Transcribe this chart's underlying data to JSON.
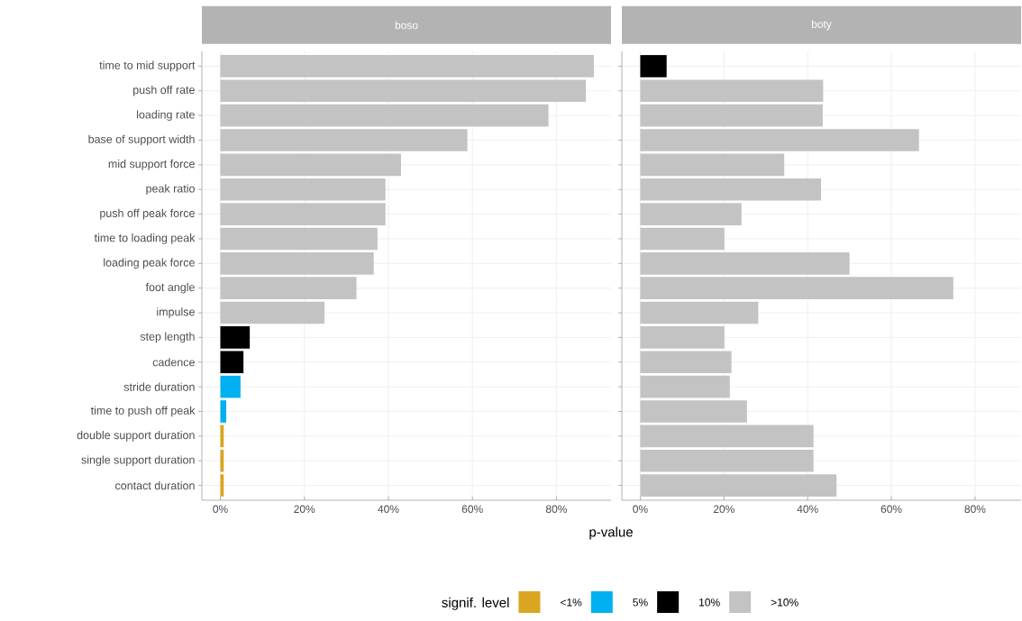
{
  "chart_data": [
    {
      "type": "bar",
      "orientation": "horizontal",
      "title": "boso",
      "xlabel": "p-value",
      "categories": [
        "time to mid support",
        "push off rate",
        "loading rate",
        "base of support width",
        "mid support force",
        "peak ratio",
        "push off peak force",
        "time to loading peak",
        "loading peak force",
        "foot angle",
        "impulse",
        "step length",
        "cadence",
        "stride duration",
        "time to push off peak",
        "double support duration",
        "single support duration",
        "contact duration"
      ],
      "series": [
        {
          "name": "<1%",
          "color": "#daa520",
          "values": [
            null,
            null,
            null,
            null,
            null,
            null,
            null,
            null,
            null,
            null,
            null,
            null,
            null,
            null,
            null,
            0.8,
            0.8,
            0.8
          ]
        },
        {
          "name": "5%",
          "color": "#00b0f0",
          "values": [
            null,
            null,
            null,
            null,
            null,
            null,
            null,
            null,
            null,
            null,
            null,
            null,
            null,
            4.8,
            1.4,
            null,
            null,
            null
          ]
        },
        {
          "name": "10%",
          "color": "#000000",
          "values": [
            null,
            null,
            null,
            null,
            null,
            null,
            null,
            null,
            null,
            null,
            null,
            7.0,
            5.5,
            null,
            null,
            null,
            null,
            null
          ]
        },
        {
          "name": ">10%",
          "color": "#c3c3c3",
          "values": [
            88.9,
            87.0,
            78.1,
            58.8,
            43.0,
            39.3,
            39.3,
            37.4,
            36.5,
            32.4,
            24.8,
            null,
            null,
            null,
            null,
            null,
            null,
            null
          ]
        }
      ],
      "xlim": [
        -4.4,
        93
      ],
      "xticks": [
        {
          "value": 0,
          "label": "0%"
        },
        {
          "value": 20,
          "label": "20%"
        },
        {
          "value": 40,
          "label": "40%"
        },
        {
          "value": 60,
          "label": "60%"
        },
        {
          "value": 80,
          "label": "80%"
        }
      ],
      "grid": true,
      "legend": "bottom",
      "legend_title": "signif. level"
    },
    {
      "type": "bar",
      "orientation": "horizontal",
      "title": "boty",
      "categories": [
        null,
        null,
        null,
        null,
        null,
        null,
        null,
        null,
        null,
        null,
        null,
        null,
        null,
        null,
        null,
        null,
        null,
        null
      ],
      "series": [
        {
          "color": "#000000",
          "values": [
            6.3,
            null,
            null,
            null,
            null,
            null,
            null,
            null,
            null,
            null,
            null,
            null,
            null,
            null,
            null,
            null,
            null,
            null
          ]
        },
        {
          "color": "#c3c3c3",
          "values": [
            null,
            43.7,
            43.6,
            66.6,
            34.4,
            43.2,
            24.2,
            20.1,
            50.0,
            74.8,
            28.2,
            20.1,
            21.8,
            21.4,
            25.5,
            41.4,
            41.4,
            46.9
          ]
        }
      ],
      "xlim": [
        -4.4,
        91
      ],
      "xticks": [
        {
          "value": 0,
          "label": "0%"
        },
        {
          "value": 20,
          "label": "20%"
        },
        {
          "value": 40,
          "label": "40%"
        },
        {
          "value": 60,
          "label": "60%"
        },
        {
          "value": 80,
          "label": "80%"
        }
      ],
      "grid": true,
      "tick_labels": "x"
    }
  ]
}
